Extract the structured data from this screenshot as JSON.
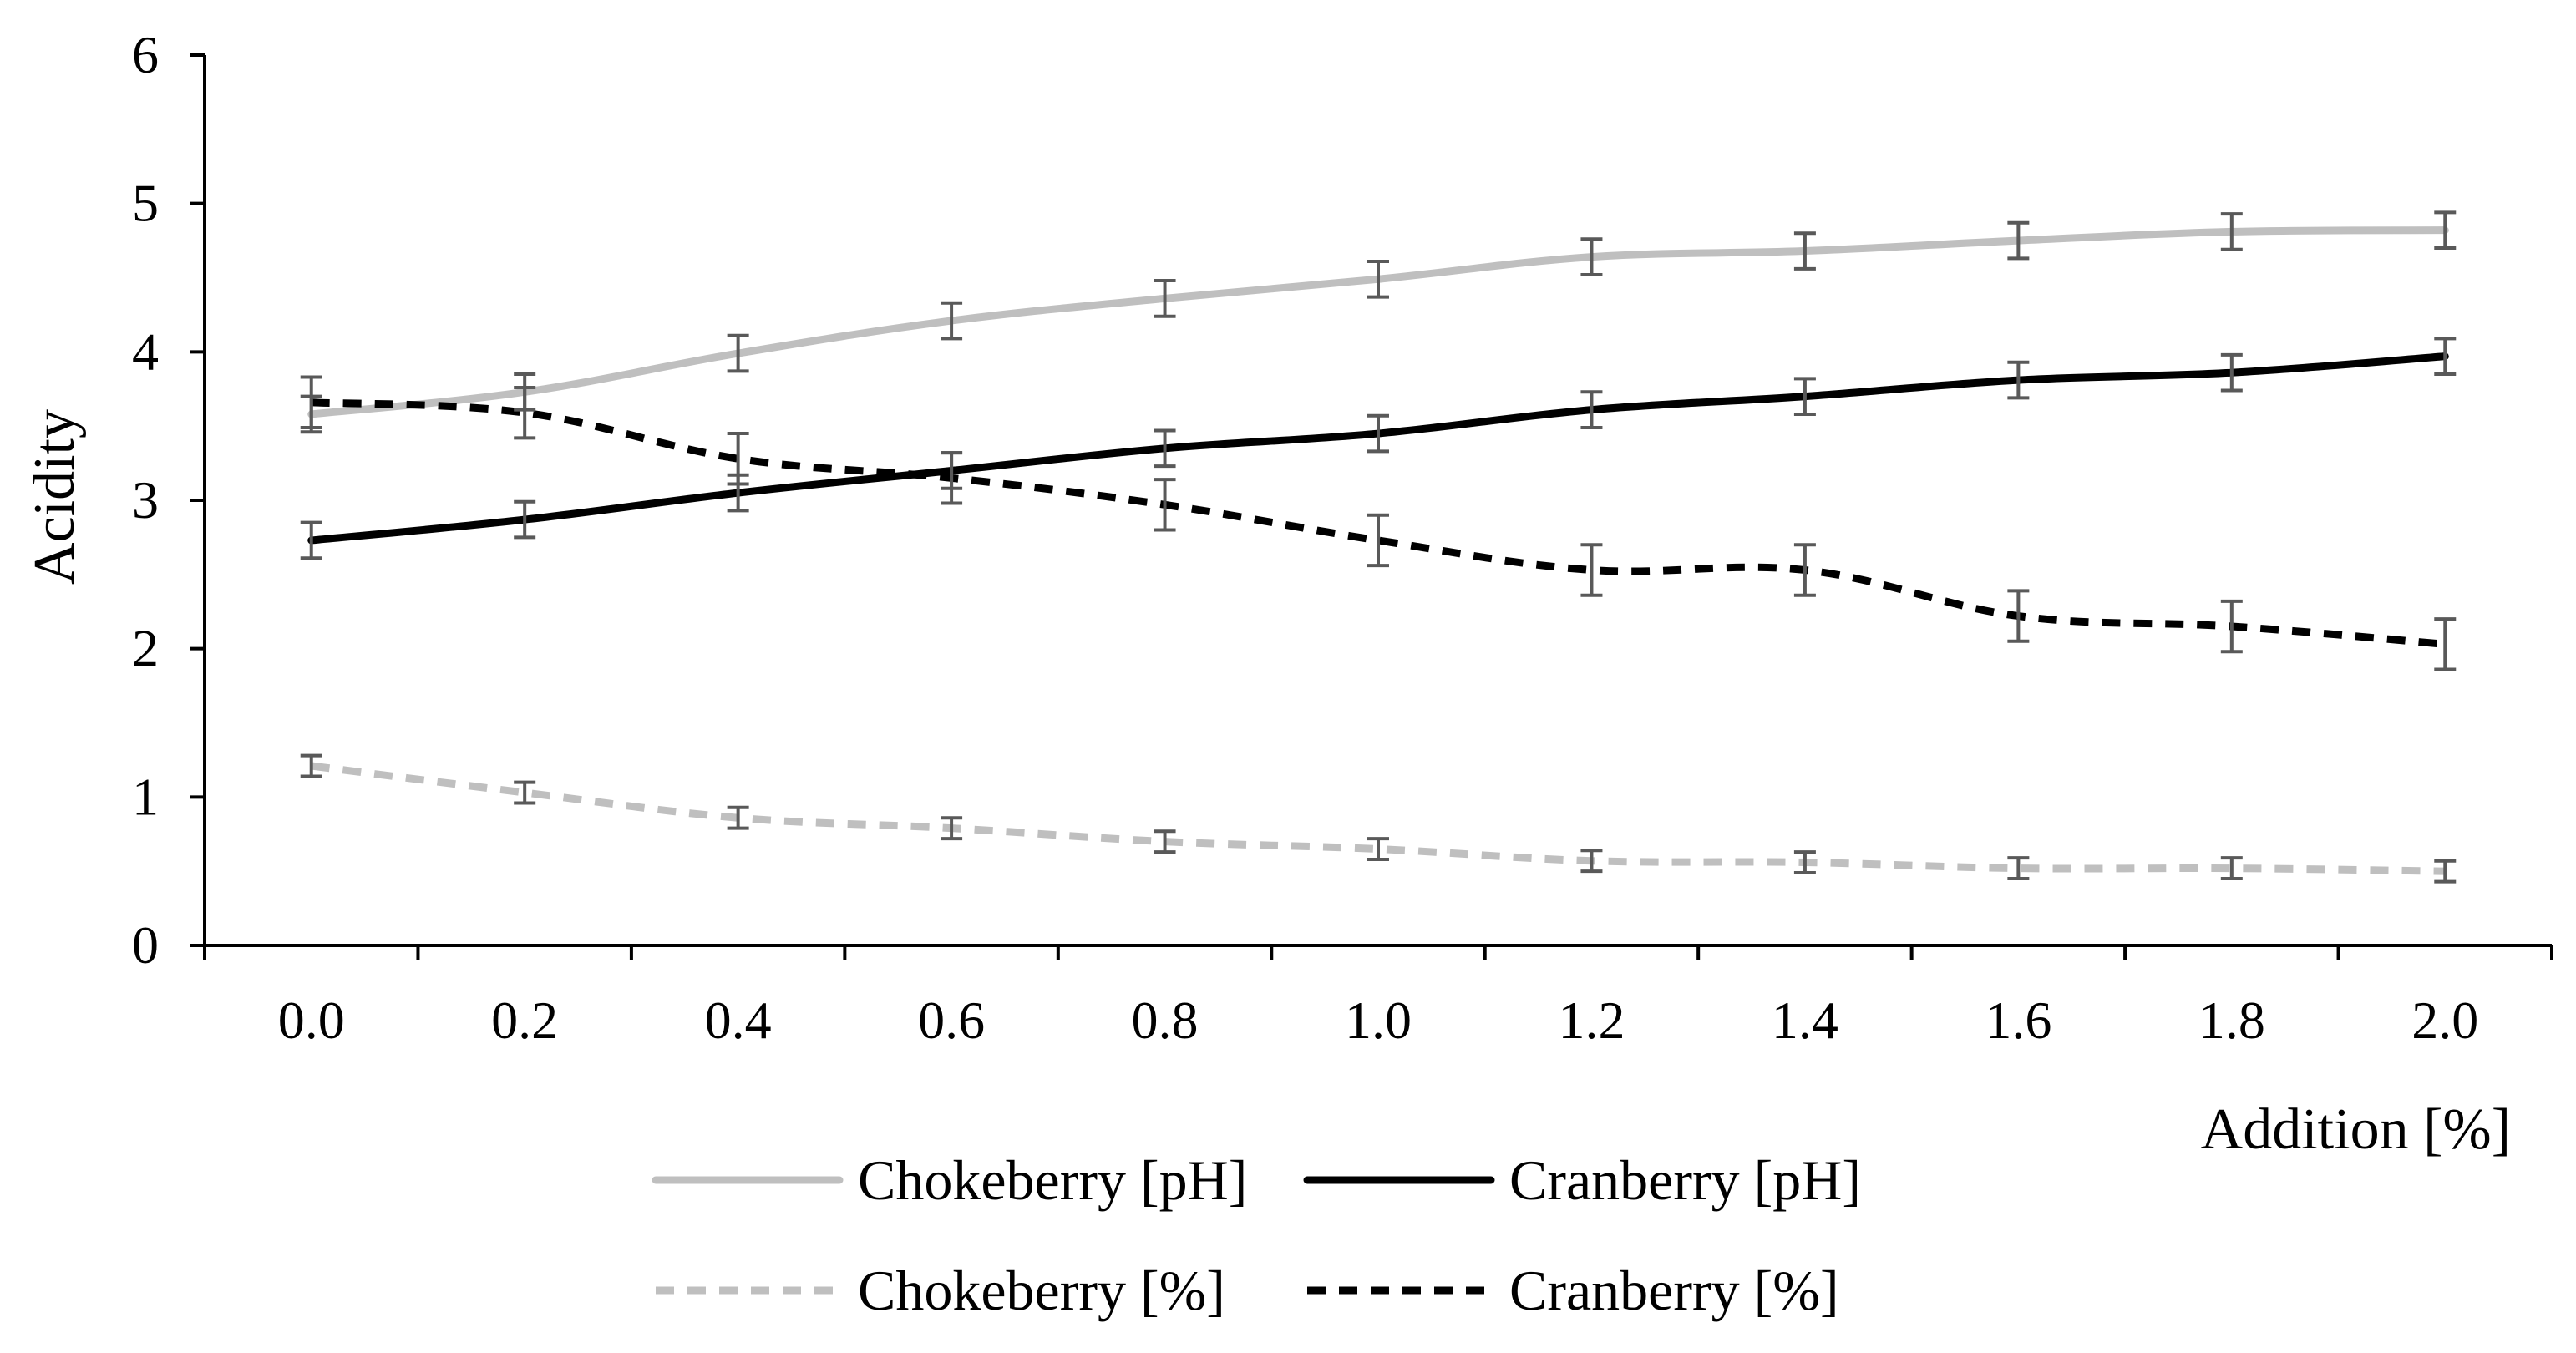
{
  "chart_data": {
    "type": "line",
    "title": "",
    "xlabel": "Addition [%]",
    "ylabel": "Acidity",
    "x": [
      "0.0",
      "0.2",
      "0.4",
      "0.6",
      "0.8",
      "1.0",
      "1.2",
      "1.4",
      "1.6",
      "1.8",
      "2.0"
    ],
    "ylim": [
      0,
      6
    ],
    "yticks": [
      "0",
      "1",
      "2",
      "3",
      "4",
      "5",
      "6"
    ],
    "grid": false,
    "legend_position": "bottom",
    "series": [
      {
        "name": "Chokeberry [pH]",
        "color": "#bfbfbf",
        "dash": "solid",
        "values": [
          3.58,
          3.73,
          3.99,
          4.21,
          4.36,
          4.49,
          4.64,
          4.68,
          4.75,
          4.81,
          4.82
        ],
        "errors": [
          0.12,
          0.12,
          0.12,
          0.12,
          0.12,
          0.12,
          0.12,
          0.12,
          0.12,
          0.12,
          0.12
        ]
      },
      {
        "name": "Cranberry [pH]",
        "color": "#000000",
        "dash": "solid",
        "values": [
          2.73,
          2.87,
          3.05,
          3.2,
          3.35,
          3.45,
          3.61,
          3.7,
          3.81,
          3.86,
          3.97
        ],
        "errors": [
          0.12,
          0.12,
          0.12,
          0.12,
          0.12,
          0.12,
          0.12,
          0.12,
          0.12,
          0.12,
          0.12
        ]
      },
      {
        "name": "Chokeberry [%]",
        "color": "#bfbfbf",
        "dash": "dashed",
        "values": [
          1.21,
          1.03,
          0.86,
          0.79,
          0.7,
          0.65,
          0.57,
          0.56,
          0.52,
          0.52,
          0.5
        ],
        "errors": [
          0.07,
          0.07,
          0.07,
          0.07,
          0.07,
          0.07,
          0.07,
          0.07,
          0.07,
          0.07,
          0.07
        ]
      },
      {
        "name": "Cranberry [%]",
        "color": "#000000",
        "dash": "dashed",
        "values": [
          3.66,
          3.59,
          3.28,
          3.15,
          2.97,
          2.73,
          2.53,
          2.53,
          2.22,
          2.15,
          2.03
        ],
        "errors": [
          0.17,
          0.17,
          0.17,
          0.17,
          0.17,
          0.17,
          0.17,
          0.17,
          0.17,
          0.17,
          0.17
        ]
      }
    ]
  }
}
